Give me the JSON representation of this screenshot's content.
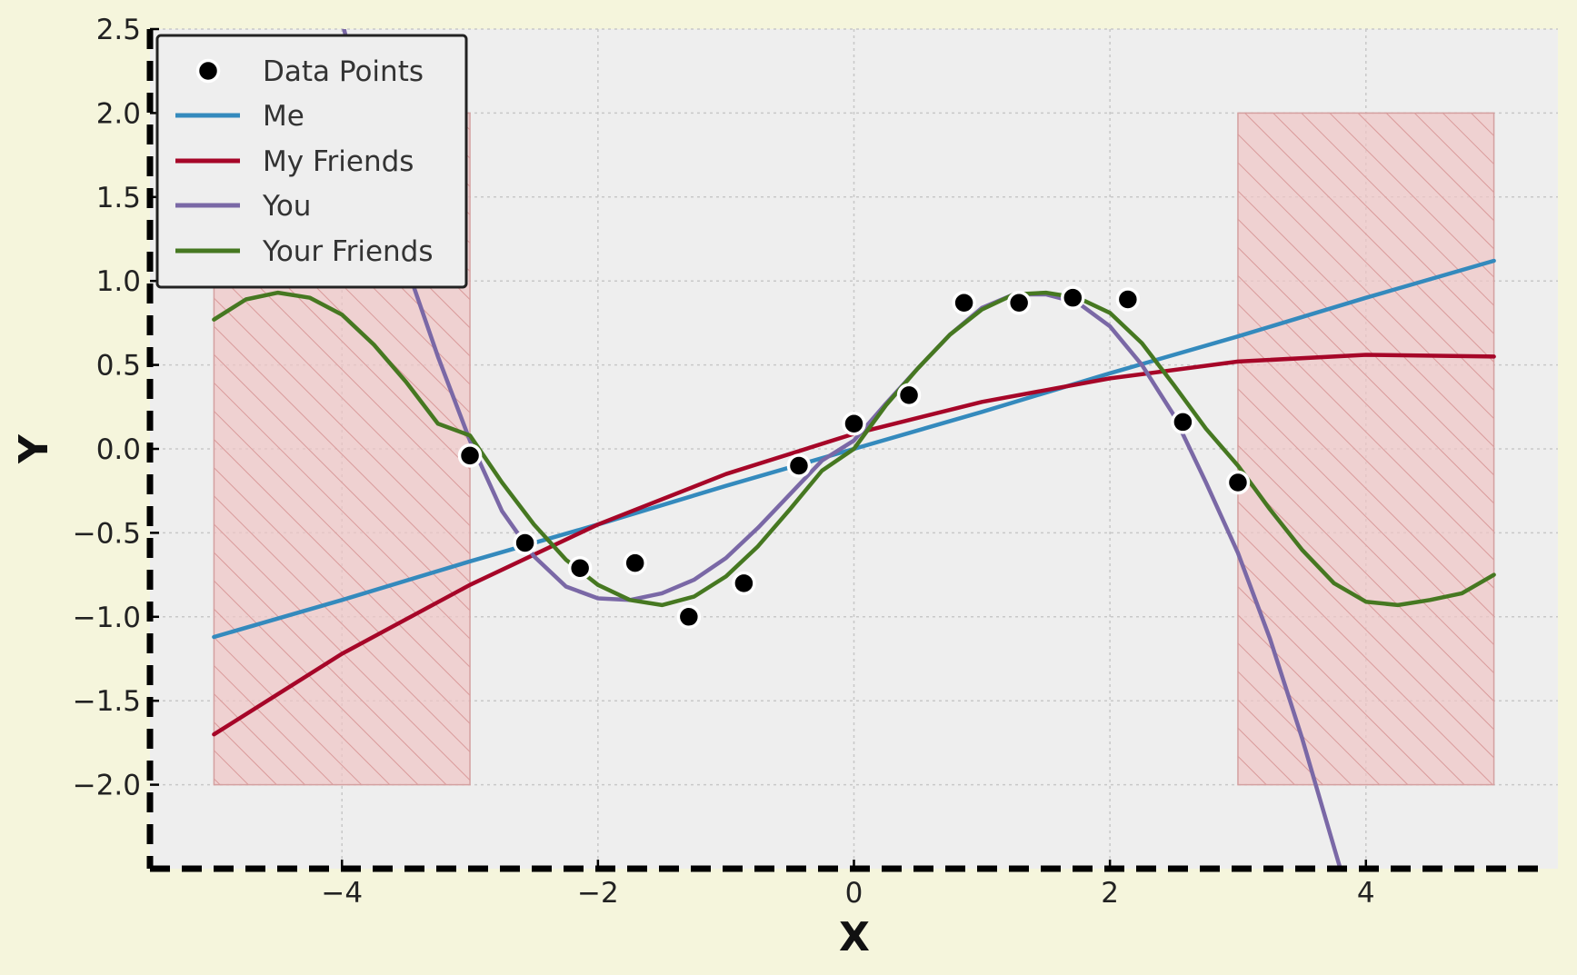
{
  "chart_data": {
    "type": "line",
    "xlabel": "X",
    "ylabel": "Y",
    "xlim": [
      -5.5,
      5.5
    ],
    "ylim": [
      -2.5,
      2.5
    ],
    "x_ticks": [
      -4,
      -2,
      0,
      2,
      4
    ],
    "x_tick_labels": [
      "−4",
      "−2",
      "0",
      "2",
      "4"
    ],
    "y_ticks": [
      2.5,
      2.0,
      1.5,
      1.0,
      0.5,
      0.0,
      -0.5,
      -1.0,
      -1.5,
      -2.0
    ],
    "y_tick_labels": [
      "2.5",
      "2.0",
      "1.5",
      "1.0",
      "0.5",
      "0.0",
      "−0.5",
      "−1.0",
      "−1.5",
      "−2.0"
    ],
    "grid": true,
    "legend_placement": "top-left",
    "colors": {
      "page_background": "#f5f5dc",
      "plot_background": "#eeeeee",
      "data_points": "#000000",
      "shaded_region": "#f0c4c4",
      "shaded_hatch": "#d99a9a"
    },
    "shaded_regions": [
      {
        "x": [
          -5,
          -3
        ],
        "y": [
          -2,
          2
        ]
      },
      {
        "x": [
          3,
          5
        ],
        "y": [
          -2,
          2
        ]
      }
    ],
    "scatter": {
      "name": "Data Points",
      "x": [
        -3.0,
        -2.57,
        -2.14,
        -1.71,
        -1.29,
        -0.86,
        -0.43,
        0.0,
        0.43,
        0.86,
        1.29,
        1.71,
        2.14,
        2.57,
        3.0
      ],
      "y": [
        -0.04,
        -0.56,
        -0.71,
        -0.68,
        -1.0,
        -0.8,
        -0.1,
        0.15,
        0.32,
        0.87,
        0.87,
        0.9,
        0.89,
        0.16,
        -0.2
      ]
    },
    "series": [
      {
        "name": "Me",
        "color": "#348abd",
        "x": [
          -5,
          -4,
          -3,
          -2,
          -1,
          0,
          1,
          2,
          3,
          4,
          5
        ],
        "y": [
          -1.12,
          -0.9,
          -0.67,
          -0.45,
          -0.22,
          0.0,
          0.22,
          0.45,
          0.67,
          0.9,
          1.12
        ]
      },
      {
        "name": "My Friends",
        "color": "#a60628",
        "x": [
          -5,
          -4,
          -3,
          -2,
          -1,
          0,
          1,
          2,
          3,
          4,
          5
        ],
        "y": [
          -1.7,
          -1.22,
          -0.81,
          -0.45,
          -0.15,
          0.09,
          0.28,
          0.42,
          0.52,
          0.56,
          0.55
        ]
      },
      {
        "name": "You",
        "color": "#7a68a6",
        "x": [
          -4.0,
          -3.75,
          -3.5,
          -3.25,
          -3.0,
          -2.75,
          -2.5,
          -2.25,
          -2.0,
          -1.75,
          -1.5,
          -1.25,
          -1.0,
          -0.75,
          -0.5,
          -0.25,
          0.0,
          0.25,
          0.5,
          0.75,
          1.0,
          1.25,
          1.5,
          1.75,
          2.0,
          2.25,
          2.5,
          2.75,
          3.0,
          3.25,
          3.5,
          3.8
        ],
        "y": [
          2.55,
          1.78,
          1.1,
          0.55,
          0.05,
          -0.37,
          -0.64,
          -0.82,
          -0.89,
          -0.9,
          -0.86,
          -0.78,
          -0.65,
          -0.47,
          -0.27,
          -0.07,
          0.05,
          0.27,
          0.48,
          0.68,
          0.84,
          0.92,
          0.92,
          0.87,
          0.73,
          0.5,
          0.2,
          -0.2,
          -0.62,
          -1.13,
          -1.72,
          -2.5
        ]
      },
      {
        "name": "Your Friends",
        "color": "#467821",
        "x": [
          -5.0,
          -4.75,
          -4.5,
          -4.25,
          -4.0,
          -3.75,
          -3.5,
          -3.25,
          -3.0,
          -2.75,
          -2.5,
          -2.25,
          -2.0,
          -1.75,
          -1.5,
          -1.25,
          -1.0,
          -0.75,
          -0.5,
          -0.25,
          0.0,
          0.25,
          0.5,
          0.75,
          1.0,
          1.25,
          1.5,
          1.75,
          2.0,
          2.25,
          2.5,
          2.75,
          3.0,
          3.25,
          3.5,
          3.75,
          4.0,
          4.25,
          4.5,
          4.75,
          5.0
        ],
        "y": [
          0.77,
          0.89,
          0.93,
          0.9,
          0.8,
          0.62,
          0.4,
          0.15,
          0.08,
          -0.2,
          -0.45,
          -0.66,
          -0.81,
          -0.9,
          -0.93,
          -0.88,
          -0.76,
          -0.58,
          -0.36,
          -0.13,
          0.0,
          0.26,
          0.48,
          0.68,
          0.83,
          0.92,
          0.93,
          0.9,
          0.81,
          0.63,
          0.38,
          0.12,
          -0.1,
          -0.36,
          -0.6,
          -0.8,
          -0.91,
          -0.93,
          -0.9,
          -0.86,
          -0.75
        ]
      }
    ]
  }
}
